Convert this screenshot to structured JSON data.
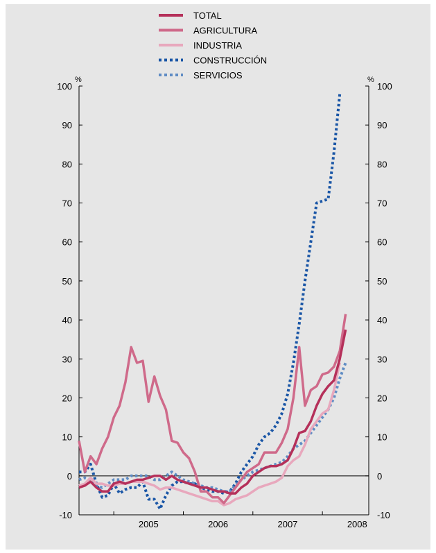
{
  "chart_data": {
    "type": "line",
    "y_unit_left": "%",
    "y_unit_right": "%",
    "ylim": [
      -10,
      100
    ],
    "yticks": [
      -10,
      0,
      10,
      20,
      30,
      40,
      50,
      60,
      70,
      80,
      90,
      100
    ],
    "x_year_labels": [
      "2005",
      "2006",
      "2007",
      "2008"
    ],
    "x_start": "2004-07",
    "x_end": "2008-09",
    "legend_position": "top-center",
    "grid": false,
    "zero_line": true,
    "series": [
      {
        "name": "TOTAL",
        "color": "#b5305a",
        "style": "solid",
        "points": [
          [
            "2004-07",
            -3
          ],
          [
            "2004-08",
            -2.5
          ],
          [
            "2004-09",
            -1.5
          ],
          [
            "2004-10",
            -3
          ],
          [
            "2004-11",
            -4
          ],
          [
            "2004-12",
            -4
          ],
          [
            "2005-01",
            -2
          ],
          [
            "2005-02",
            -1.5
          ],
          [
            "2005-03",
            -2
          ],
          [
            "2005-04",
            -1.5
          ],
          [
            "2005-05",
            -1
          ],
          [
            "2005-06",
            -1
          ],
          [
            "2005-07",
            -0.5
          ],
          [
            "2005-08",
            0
          ],
          [
            "2005-09",
            0
          ],
          [
            "2005-10",
            -1
          ],
          [
            "2005-11",
            0
          ],
          [
            "2005-12",
            -1
          ],
          [
            "2006-01",
            -1.5
          ],
          [
            "2006-02",
            -2
          ],
          [
            "2006-03",
            -2.5
          ],
          [
            "2006-04",
            -3
          ],
          [
            "2006-05",
            -3
          ],
          [
            "2006-06",
            -3.5
          ],
          [
            "2006-07",
            -4
          ],
          [
            "2006-08",
            -4
          ],
          [
            "2006-09",
            -4.5
          ],
          [
            "2006-10",
            -4.5
          ],
          [
            "2006-11",
            -3
          ],
          [
            "2006-12",
            -2
          ],
          [
            "2007-01",
            0
          ],
          [
            "2007-02",
            1
          ],
          [
            "2007-03",
            2
          ],
          [
            "2007-04",
            2.5
          ],
          [
            "2007-05",
            2.5
          ],
          [
            "2007-06",
            3
          ],
          [
            "2007-07",
            4
          ],
          [
            "2007-08",
            7
          ],
          [
            "2007-09",
            11
          ],
          [
            "2007-10",
            11.5
          ],
          [
            "2007-11",
            14
          ],
          [
            "2007-12",
            18
          ],
          [
            "2008-01",
            21
          ],
          [
            "2008-02",
            23
          ],
          [
            "2008-03",
            24.5
          ],
          [
            "2008-04",
            30
          ],
          [
            "2008-05",
            37.5
          ]
        ]
      },
      {
        "name": "AGRICULTURA",
        "color": "#cf6a8a",
        "style": "solid",
        "points": [
          [
            "2004-07",
            9
          ],
          [
            "2004-08",
            1
          ],
          [
            "2004-09",
            5
          ],
          [
            "2004-10",
            3
          ],
          [
            "2004-11",
            7
          ],
          [
            "2004-12",
            10
          ],
          [
            "2005-01",
            15
          ],
          [
            "2005-02",
            18
          ],
          [
            "2005-03",
            24
          ],
          [
            "2005-04",
            33
          ],
          [
            "2005-05",
            29
          ],
          [
            "2005-06",
            29.5
          ],
          [
            "2005-07",
            19
          ],
          [
            "2005-08",
            25.5
          ],
          [
            "2005-09",
            20.5
          ],
          [
            "2005-10",
            17
          ],
          [
            "2005-11",
            9
          ],
          [
            "2005-12",
            8.5
          ],
          [
            "2006-01",
            6
          ],
          [
            "2006-02",
            4.5
          ],
          [
            "2006-03",
            1
          ],
          [
            "2006-04",
            -4
          ],
          [
            "2006-05",
            -4
          ],
          [
            "2006-06",
            -5.5
          ],
          [
            "2006-07",
            -5.5
          ],
          [
            "2006-08",
            -7
          ],
          [
            "2006-09",
            -5
          ],
          [
            "2006-10",
            -3
          ],
          [
            "2006-11",
            -1
          ],
          [
            "2006-12",
            1
          ],
          [
            "2007-01",
            2
          ],
          [
            "2007-02",
            3
          ],
          [
            "2007-03",
            6
          ],
          [
            "2007-04",
            6
          ],
          [
            "2007-05",
            6
          ],
          [
            "2007-06",
            8.5
          ],
          [
            "2007-07",
            12
          ],
          [
            "2007-08",
            20
          ],
          [
            "2007-09",
            33
          ],
          [
            "2007-10",
            18
          ],
          [
            "2007-11",
            22
          ],
          [
            "2007-12",
            23
          ],
          [
            "2008-01",
            26
          ],
          [
            "2008-02",
            26.5
          ],
          [
            "2008-03",
            28
          ],
          [
            "2008-04",
            32
          ],
          [
            "2008-05",
            41.5
          ]
        ]
      },
      {
        "name": "INDUSTRIA",
        "color": "#e8a8bd",
        "style": "solid",
        "points": [
          [
            "2004-07",
            -2.5
          ],
          [
            "2004-08",
            -2
          ],
          [
            "2004-09",
            -0.5
          ],
          [
            "2004-10",
            -2
          ],
          [
            "2004-11",
            -2
          ],
          [
            "2004-12",
            -2.5
          ],
          [
            "2005-01",
            -2.5
          ],
          [
            "2005-02",
            -2
          ],
          [
            "2005-03",
            -2
          ],
          [
            "2005-04",
            -1.5
          ],
          [
            "2005-05",
            -1.5
          ],
          [
            "2005-06",
            -1.5
          ],
          [
            "2005-07",
            -2
          ],
          [
            "2005-08",
            -2.5
          ],
          [
            "2005-09",
            -3.5
          ],
          [
            "2005-10",
            -3
          ],
          [
            "2005-11",
            -3
          ],
          [
            "2005-12",
            -3.5
          ],
          [
            "2006-01",
            -4
          ],
          [
            "2006-02",
            -4.5
          ],
          [
            "2006-03",
            -5
          ],
          [
            "2006-04",
            -5.5
          ],
          [
            "2006-05",
            -6
          ],
          [
            "2006-06",
            -6.5
          ],
          [
            "2006-07",
            -6.5
          ],
          [
            "2006-08",
            -7.5
          ],
          [
            "2006-09",
            -7
          ],
          [
            "2006-10",
            -6
          ],
          [
            "2006-11",
            -5.5
          ],
          [
            "2006-12",
            -5
          ],
          [
            "2007-01",
            -4
          ],
          [
            "2007-02",
            -3
          ],
          [
            "2007-03",
            -2.5
          ],
          [
            "2007-04",
            -2
          ],
          [
            "2007-05",
            -1.5
          ],
          [
            "2007-06",
            -0.5
          ],
          [
            "2007-07",
            2.5
          ],
          [
            "2007-08",
            4
          ],
          [
            "2007-09",
            5
          ],
          [
            "2007-10",
            8
          ],
          [
            "2007-11",
            12
          ],
          [
            "2007-12",
            14
          ],
          [
            "2008-01",
            16
          ],
          [
            "2008-02",
            17
          ],
          [
            "2008-03",
            22
          ],
          [
            "2008-04",
            29
          ]
        ]
      },
      {
        "name": "CONSTRUCCIÓN",
        "color": "#1a56a6",
        "style": "dotted",
        "points": [
          [
            "2004-07",
            1
          ],
          [
            "2004-08",
            1
          ],
          [
            "2004-09",
            3
          ],
          [
            "2004-10",
            -2
          ],
          [
            "2004-11",
            -5.5
          ],
          [
            "2004-12",
            -5
          ],
          [
            "2005-01",
            -2
          ],
          [
            "2005-02",
            -4.5
          ],
          [
            "2005-03",
            -3.5
          ],
          [
            "2005-04",
            -3
          ],
          [
            "2005-05",
            -3
          ],
          [
            "2005-06",
            -1.5
          ],
          [
            "2005-07",
            -6
          ],
          [
            "2005-08",
            -6
          ],
          [
            "2005-09",
            -8.5
          ],
          [
            "2005-10",
            -5
          ],
          [
            "2005-11",
            -2.5
          ],
          [
            "2005-12",
            -1.5
          ],
          [
            "2006-01",
            -1.5
          ],
          [
            "2006-02",
            -2
          ],
          [
            "2006-03",
            -2
          ],
          [
            "2006-04",
            -3
          ],
          [
            "2006-05",
            -3.5
          ],
          [
            "2006-06",
            -4
          ],
          [
            "2006-07",
            -4
          ],
          [
            "2006-08",
            -4.5
          ],
          [
            "2006-09",
            -4
          ],
          [
            "2006-10",
            -2
          ],
          [
            "2006-11",
            1
          ],
          [
            "2006-12",
            3
          ],
          [
            "2007-01",
            5
          ],
          [
            "2007-02",
            8
          ],
          [
            "2007-03",
            10
          ],
          [
            "2007-04",
            11
          ],
          [
            "2007-05",
            13
          ],
          [
            "2007-06",
            16
          ],
          [
            "2007-07",
            21
          ],
          [
            "2007-08",
            29
          ],
          [
            "2007-09",
            39
          ],
          [
            "2007-10",
            50
          ],
          [
            "2007-11",
            60
          ],
          [
            "2007-12",
            70
          ],
          [
            "2008-01",
            70.5
          ],
          [
            "2008-02",
            71
          ],
          [
            "2008-03",
            83
          ],
          [
            "2008-04",
            98
          ]
        ]
      },
      {
        "name": "SERVICIOS",
        "color": "#5f8cc4",
        "style": "dotted",
        "points": [
          [
            "2004-07",
            -1
          ],
          [
            "2004-08",
            -0.5
          ],
          [
            "2004-09",
            -1
          ],
          [
            "2004-10",
            -2.5
          ],
          [
            "2004-11",
            -3
          ],
          [
            "2004-12",
            -2
          ],
          [
            "2005-01",
            -1
          ],
          [
            "2005-02",
            -1
          ],
          [
            "2005-03",
            -1
          ],
          [
            "2005-04",
            0
          ],
          [
            "2005-05",
            0
          ],
          [
            "2005-06",
            0
          ],
          [
            "2005-07",
            0
          ],
          [
            "2005-08",
            -1
          ],
          [
            "2005-09",
            -1
          ],
          [
            "2005-10",
            0
          ],
          [
            "2005-11",
            1
          ],
          [
            "2005-12",
            0
          ],
          [
            "2006-01",
            -1
          ],
          [
            "2006-02",
            -1.5
          ],
          [
            "2006-03",
            -2
          ],
          [
            "2006-04",
            -2.5
          ],
          [
            "2006-05",
            -3
          ],
          [
            "2006-06",
            -3
          ],
          [
            "2006-07",
            -3.5
          ],
          [
            "2006-08",
            -4
          ],
          [
            "2006-09",
            -4
          ],
          [
            "2006-10",
            -2.5
          ],
          [
            "2006-11",
            -1
          ],
          [
            "2006-12",
            0
          ],
          [
            "2007-01",
            1
          ],
          [
            "2007-02",
            1.5
          ],
          [
            "2007-03",
            2
          ],
          [
            "2007-04",
            2.5
          ],
          [
            "2007-05",
            3
          ],
          [
            "2007-06",
            3.5
          ],
          [
            "2007-07",
            5
          ],
          [
            "2007-08",
            7
          ],
          [
            "2007-09",
            8
          ],
          [
            "2007-10",
            9
          ],
          [
            "2007-11",
            11
          ],
          [
            "2007-12",
            13
          ],
          [
            "2008-01",
            15
          ],
          [
            "2008-02",
            17
          ],
          [
            "2008-03",
            20
          ],
          [
            "2008-04",
            25
          ],
          [
            "2008-05",
            29
          ]
        ]
      }
    ]
  }
}
